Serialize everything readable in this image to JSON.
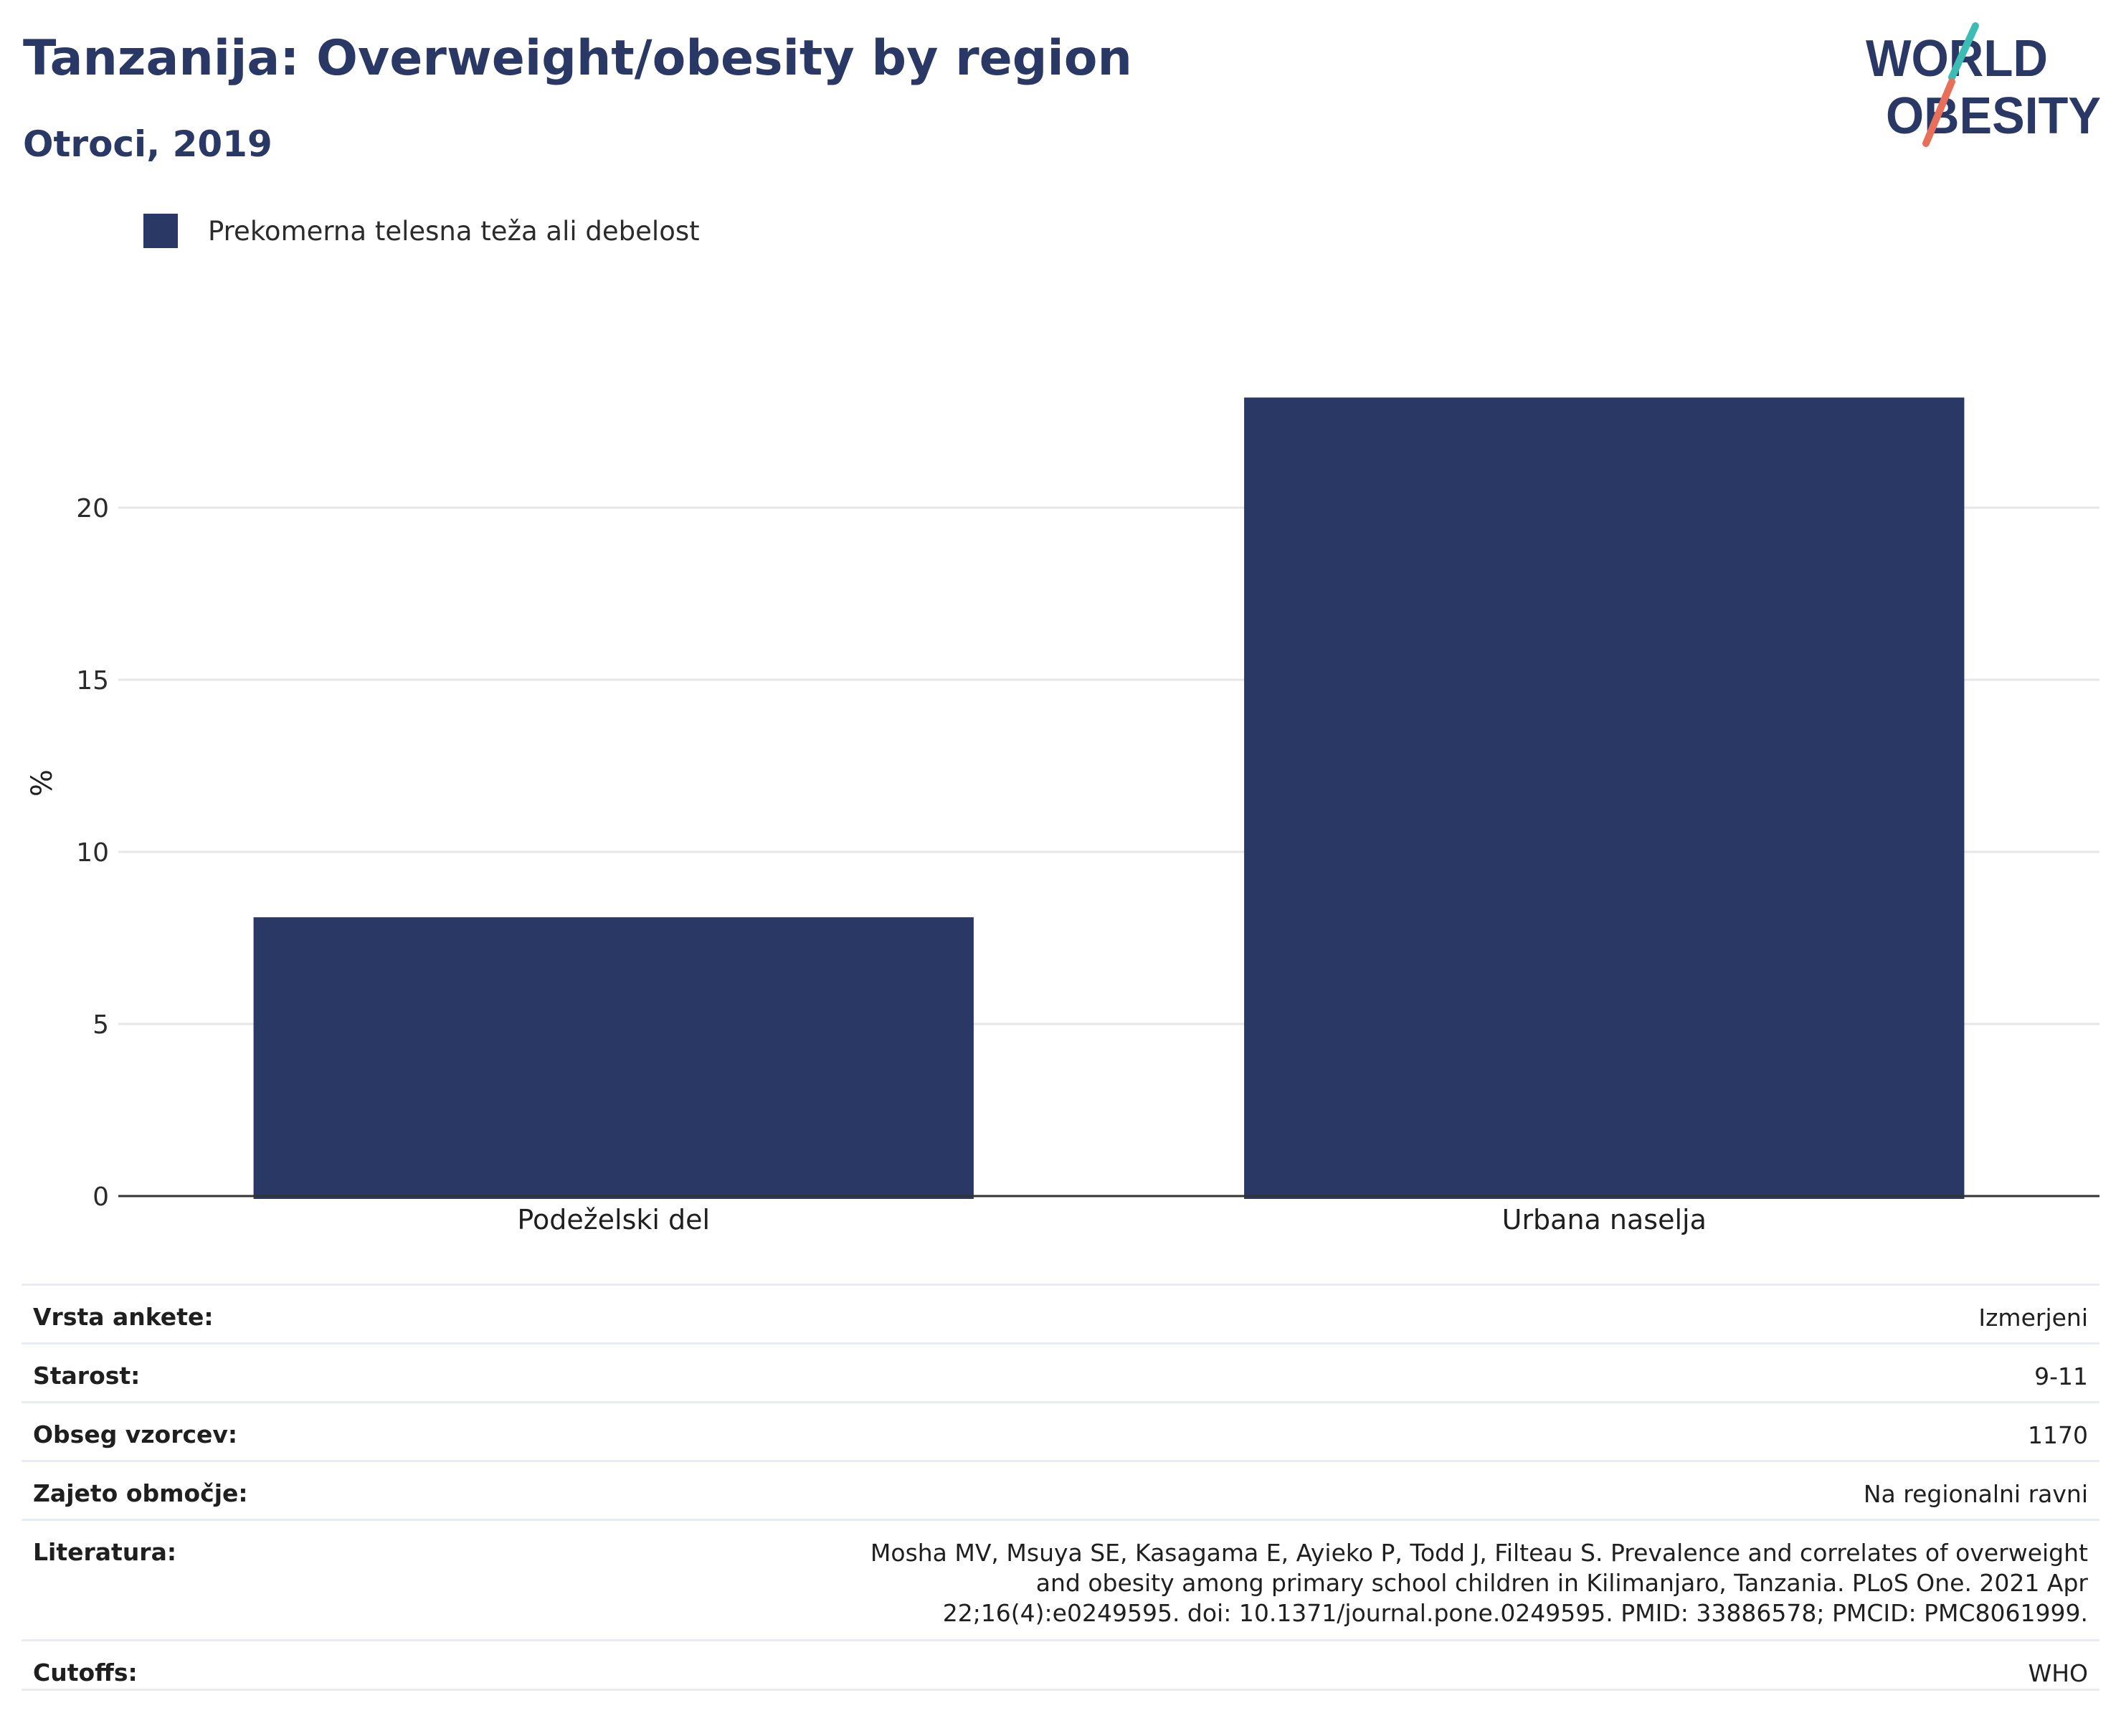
{
  "title": "Tanzanija: Overweight/obesity by region",
  "subtitle": "Otroci, 2019",
  "logo": {
    "line1": "WORLD",
    "line2": "OBESITY",
    "accent_colors": [
      "#3cbcb4",
      "#e8705a"
    ]
  },
  "colors": {
    "bar": "#2a3865",
    "title": "#2a3865",
    "grid": "#e6e6e6",
    "axis": "#333333"
  },
  "chart_data": {
    "type": "bar",
    "categories": [
      "Podeželski del",
      "Urbana naselja"
    ],
    "series": [
      {
        "name": "Prekomerna telesna teža ali debelost",
        "values": [
          8.1,
          23.2
        ]
      }
    ],
    "xlabel": "",
    "ylabel": "%",
    "ylim": [
      0,
      25
    ],
    "yticks": [
      0,
      5,
      10,
      15,
      20
    ],
    "grid": true,
    "legend": "top-left"
  },
  "info": [
    {
      "label": "Vrsta ankete:",
      "value": "Izmerjeni"
    },
    {
      "label": "Starost:",
      "value": "9-11"
    },
    {
      "label": "Obseg vzorcev:",
      "value": "1170"
    },
    {
      "label": "Zajeto območje:",
      "value": "Na regionalni ravni"
    },
    {
      "label": "Literatura:",
      "value": "Mosha MV, Msuya SE, Kasagama E, Ayieko P, Todd J, Filteau S. Prevalence and correlates of overweight and obesity among primary school children in Kilimanjaro, Tanzania. PLoS One. 2021 Apr 22;16(4):e0249595. doi: 10.1371/journal.pone.0249595. PMID: 33886578; PMCID: PMC8061999."
    },
    {
      "label": "Cutoffs:",
      "value": "WHO"
    }
  ]
}
